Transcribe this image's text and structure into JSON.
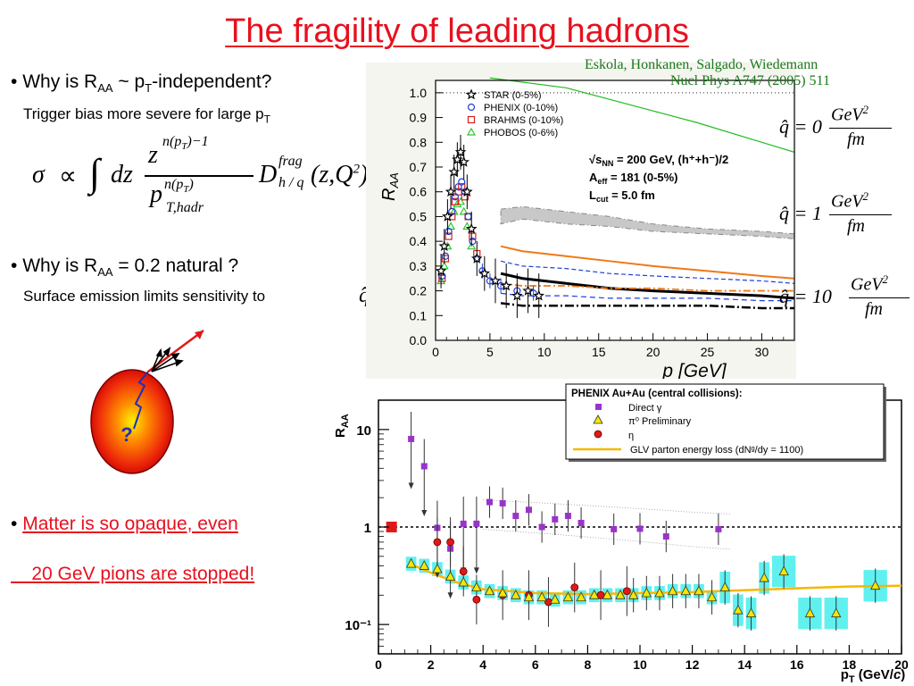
{
  "slide": {
    "title": "The fragility of leading hadrons",
    "bullet1": {
      "marker": "•",
      "pre": "Why is R",
      "sub": "AA",
      "mid": " ~ p",
      "sub2": "T",
      "post": "-independent?"
    },
    "note1": {
      "text": "Trigger bias more severe for large p",
      "sub": "T"
    },
    "formula": {
      "sigma": "σ",
      "propto": "∝",
      "integral": "∫",
      "dz": "dz",
      "z": "z",
      "num_exp": "n(p",
      "num_exp_sub": "T",
      "num_exp_end": ")−1",
      "den": "p",
      "den_sub": "T,hadr",
      "den_exp": "n(p",
      "den_exp_sub": "T",
      "den_exp_end": ")",
      "D": "D",
      "D_sup": "frag",
      "D_sub": "h / q",
      "args": "(z,Q",
      "args_sup": "2",
      "args_end": ")"
    },
    "bullet2": {
      "marker": "•",
      "pre": "Why is R",
      "sub": "AA",
      "post": " = 0.2 natural ?"
    },
    "note2": {
      "text": "Surface emission limits sensitivity to",
      "qhat": "q̂"
    },
    "bullet3": {
      "marker": "•",
      "line1": "Matter is so opaque, even",
      "line2": "20 GeV pions are stopped!"
    },
    "sketch": {
      "question": "?"
    }
  },
  "citation": {
    "line1": "Eskola, Honkanen, Salgado, Wiedemann",
    "line2": "Nucl Phys A747 (2005) 511"
  },
  "qhat_labels": [
    {
      "lhs": "q̂ = 0",
      "num": "GeV",
      "exp": "2",
      "den": "fm"
    },
    {
      "lhs": "q̂ = 1",
      "num": "GeV",
      "exp": "2",
      "den": "fm"
    },
    {
      "lhs": "q̂ = 10",
      "num": "GeV",
      "exp": "2",
      "den": "fm"
    }
  ],
  "chart_data": [
    {
      "type": "scatter",
      "ylabel": "R_AA",
      "xlabel": "p_T [GeV]",
      "xlim": [
        0,
        33
      ],
      "ylim": [
        0,
        1.05
      ],
      "xticks": [
        0,
        5,
        10,
        15,
        20,
        25,
        30
      ],
      "yticks": [
        0.0,
        0.1,
        0.2,
        0.3,
        0.4,
        0.5,
        0.6,
        0.7,
        0.8,
        0.9,
        1.0
      ],
      "ytick_labels": [
        "0.0",
        "0.1",
        "0.2",
        "0.3",
        "0.4",
        "0.5",
        "0.6",
        "0.7",
        "0.8",
        "0.9",
        "1.0"
      ],
      "legend": [
        "STAR (0-5%)",
        "PHENIX (0-10%)",
        "BRAHMS (0-10%)",
        "PHOBOS (0-6%)"
      ],
      "annotation": {
        "l1": "√s",
        "l1_sub": "NN",
        "l1_rest": " = 200 GeV, (h⁺+h⁻)/2",
        "l2": "A",
        "l2_sub": "eff",
        "l2_rest": " = 181 (0-5%)",
        "l3": "L",
        "l3_sub": "cut",
        "l3_rest": " = 5.0 fm"
      },
      "colors": {
        "star": "#000000",
        "phenix": "#1f3fd8",
        "brahms": "#d81f1f",
        "phobos": "#2ec42e",
        "orange": "#f07818",
        "band": "#c8c8c8"
      },
      "series": [
        {
          "name": "STAR (0-5%)",
          "x": [
            0.5,
            0.8,
            1.1,
            1.4,
            1.7,
            2.0,
            2.3,
            2.6,
            2.9,
            3.3,
            3.8,
            4.5,
            5.5,
            6.5,
            7.5,
            8.5,
            9.5
          ],
          "y": [
            0.28,
            0.38,
            0.5,
            0.6,
            0.68,
            0.73,
            0.76,
            0.72,
            0.6,
            0.45,
            0.33,
            0.27,
            0.24,
            0.22,
            0.18,
            0.2,
            0.18
          ]
        },
        {
          "name": "PHENIX (0-10%)",
          "x": [
            0.6,
            0.9,
            1.2,
            1.5,
            1.8,
            2.1,
            2.4,
            2.7,
            3.0,
            3.4,
            3.8,
            4.3,
            5.0,
            6.0,
            7.5,
            9.0
          ],
          "y": [
            0.26,
            0.34,
            0.44,
            0.52,
            0.58,
            0.62,
            0.64,
            0.6,
            0.5,
            0.4,
            0.33,
            0.28,
            0.24,
            0.22,
            0.2,
            0.19
          ]
        },
        {
          "name": "BRAHMS (0-10%)",
          "x": [
            0.6,
            0.9,
            1.2,
            1.5,
            1.8,
            2.1,
            2.4,
            2.7,
            3.0,
            3.4,
            3.8
          ],
          "y": [
            0.25,
            0.33,
            0.42,
            0.5,
            0.56,
            0.6,
            0.62,
            0.58,
            0.5,
            0.42,
            0.35
          ]
        },
        {
          "name": "PHOBOS (0-6%)",
          "x": [
            0.5,
            0.8,
            1.1,
            1.4,
            1.7,
            2.0,
            2.3,
            2.6,
            2.9,
            3.3
          ],
          "y": [
            0.24,
            0.3,
            0.38,
            0.46,
            0.52,
            0.55,
            0.56,
            0.52,
            0.46,
            0.38
          ]
        }
      ],
      "curves": {
        "band_upper_x": [
          6,
          8,
          12,
          16,
          20,
          25,
          30,
          33
        ],
        "band_upper_y": [
          0.53,
          0.54,
          0.52,
          0.5,
          0.47,
          0.45,
          0.44,
          0.43
        ],
        "band_lower_y": [
          0.47,
          0.49,
          0.47,
          0.46,
          0.44,
          0.43,
          0.42,
          0.41
        ],
        "orange_x": [
          6,
          8,
          12,
          16,
          20,
          25,
          30,
          33
        ],
        "orange_y": [
          0.38,
          0.36,
          0.34,
          0.32,
          0.3,
          0.28,
          0.26,
          0.25
        ],
        "blue_dash_x": [
          6,
          8,
          12,
          16,
          20,
          25,
          30,
          33
        ],
        "blue_dash_y": [
          0.32,
          0.3,
          0.29,
          0.27,
          0.26,
          0.25,
          0.24,
          0.23
        ],
        "black_solid_x": [
          6,
          8,
          12,
          16,
          20,
          25,
          30,
          33
        ],
        "black_solid_y": [
          0.27,
          0.25,
          0.23,
          0.21,
          0.2,
          0.19,
          0.18,
          0.17
        ],
        "orange_dashdot_x": [
          6,
          8,
          12,
          16,
          20,
          25,
          30,
          33
        ],
        "orange_dashdot_y": [
          0.23,
          0.22,
          0.22,
          0.21,
          0.21,
          0.2,
          0.2,
          0.2
        ],
        "blue_dash2_x": [
          6,
          8,
          12,
          16,
          20,
          25,
          30,
          33
        ],
        "blue_dash2_y": [
          0.19,
          0.18,
          0.18,
          0.17,
          0.17,
          0.17,
          0.16,
          0.16
        ],
        "black_dashdot_x": [
          6,
          8,
          12,
          16,
          20,
          25,
          30,
          33
        ],
        "black_dashdot_y": [
          0.15,
          0.14,
          0.14,
          0.14,
          0.14,
          0.14,
          0.13,
          0.13
        ],
        "green_x": [
          5,
          12,
          18,
          24,
          30,
          33
        ],
        "green_y": [
          1.06,
          1.02,
          0.95,
          0.88,
          0.8,
          0.76
        ],
        "ref_dotted_y": 1.0
      }
    },
    {
      "type": "scatter",
      "ylabel": "R_AA",
      "xlabel": "p_T (GeV/c)",
      "yscale": "log",
      "xlim": [
        0,
        20
      ],
      "ylim": [
        0.05,
        20
      ],
      "xticks": [
        0,
        2,
        4,
        6,
        8,
        10,
        12,
        14,
        16,
        18,
        20
      ],
      "ytick_labels": [
        "10",
        "1",
        "10⁻¹"
      ],
      "legend_title": "PHENIX Au+Au (central collisions):",
      "legend": [
        "Direct γ",
        "π⁰ Preliminary",
        "η",
        "GLV parton energy loss (dNᵍ/dy = 1100)"
      ],
      "colors": {
        "direct": "#9933cc",
        "pi0": "#f5e600",
        "eta": "#e01818",
        "glv": "#f5b800",
        "box": "#60f0f0",
        "ref": "#e01818"
      },
      "reference": {
        "x": 0.5,
        "y": 1.0
      },
      "series": [
        {
          "name": "Direct γ",
          "x": [
            1.25,
            1.75,
            2.25,
            2.75,
            3.25,
            3.75,
            4.25,
            4.75,
            5.25,
            5.75,
            6.25,
            6.75,
            7.25,
            7.75,
            9.0,
            10.0,
            11.0,
            13.0
          ],
          "y": [
            8.0,
            4.2,
            0.98,
            0.6,
            1.08,
            1.08,
            1.8,
            1.75,
            1.3,
            1.5,
            1.0,
            1.2,
            1.3,
            1.1,
            0.95,
            0.96,
            0.8,
            0.95
          ]
        },
        {
          "name": "π⁰ Preliminary",
          "x": [
            1.25,
            1.75,
            2.25,
            2.75,
            3.25,
            3.75,
            4.25,
            4.75,
            5.25,
            5.75,
            6.25,
            6.75,
            7.25,
            7.75,
            8.25,
            8.75,
            9.25,
            9.75,
            10.25,
            10.75,
            11.25,
            11.75,
            12.25,
            12.75,
            13.25,
            13.75,
            14.25,
            14.75,
            15.5,
            16.5,
            17.5,
            19.0
          ],
          "y": [
            0.42,
            0.4,
            0.37,
            0.31,
            0.27,
            0.24,
            0.22,
            0.21,
            0.2,
            0.19,
            0.19,
            0.18,
            0.19,
            0.19,
            0.2,
            0.2,
            0.2,
            0.2,
            0.21,
            0.21,
            0.22,
            0.22,
            0.22,
            0.19,
            0.24,
            0.14,
            0.13,
            0.3,
            0.35,
            0.13,
            0.13,
            0.25
          ]
        },
        {
          "name": "η",
          "x": [
            2.25,
            2.75,
            3.25,
            3.75,
            4.75,
            5.75,
            6.5,
            7.5,
            8.5,
            9.5
          ],
          "y": [
            0.7,
            0.7,
            0.35,
            0.18,
            0.2,
            0.2,
            0.17,
            0.24,
            0.2,
            0.22
          ]
        }
      ],
      "glv": {
        "x": [
          1.2,
          2,
          3,
          4,
          6,
          8,
          10,
          12,
          14,
          16,
          18,
          20
        ],
        "y": [
          0.42,
          0.34,
          0.27,
          0.23,
          0.21,
          0.205,
          0.21,
          0.215,
          0.225,
          0.235,
          0.245,
          0.25
        ]
      }
    }
  ]
}
